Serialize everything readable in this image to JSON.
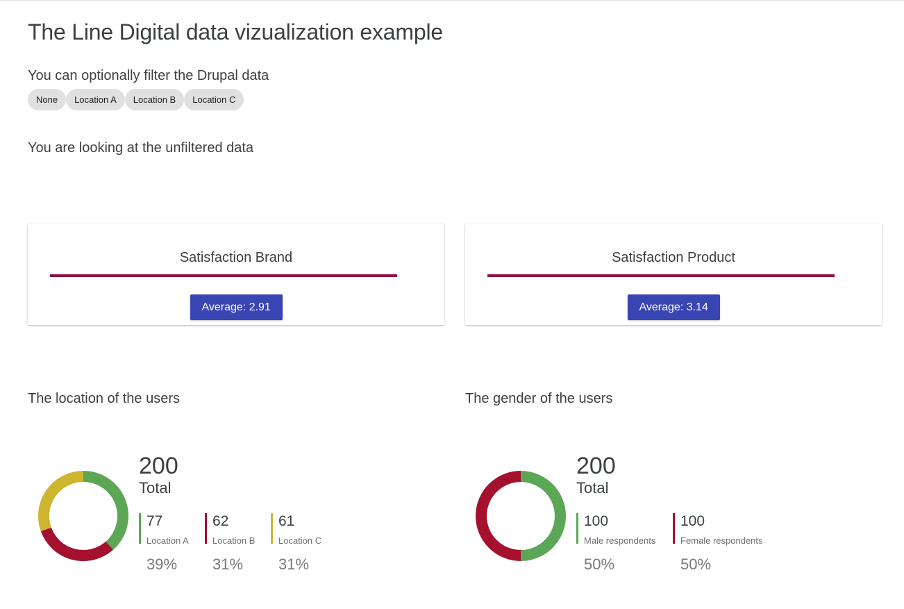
{
  "header": {
    "title": "The Line Digital data vizualization example",
    "filter_heading": "You can optionally filter the Drupal data",
    "filters": [
      "None",
      "Location A",
      "Location B",
      "Location C"
    ],
    "status": "You are looking at the unfiltered data"
  },
  "cards": [
    {
      "title": "Satisfaction Brand",
      "average_label": "Average: 2.91",
      "bar_color": "#8e1149",
      "button_color": "#3a45b4"
    },
    {
      "title": "Satisfaction Product",
      "average_label": "Average: 3.14",
      "bar_color": "#8e1149",
      "button_color": "#3a45b4"
    }
  ],
  "location": {
    "heading": "The location of the users",
    "total": "200",
    "total_label": "Total",
    "items": [
      {
        "value": "77",
        "label": "Location A",
        "percent": "39%",
        "color": "#5ba755"
      },
      {
        "value": "62",
        "label": "Location B",
        "percent": "31%",
        "color": "#a4102d"
      },
      {
        "value": "61",
        "label": "Location C",
        "percent": "31%",
        "color": "#cdb52f"
      }
    ]
  },
  "gender": {
    "heading": "The gender of the users",
    "total": "200",
    "total_label": "Total",
    "items": [
      {
        "value": "100",
        "label": "Male respondents",
        "percent": "50%",
        "color": "#5ba755"
      },
      {
        "value": "100",
        "label": "Female respondents",
        "percent": "50%",
        "color": "#a4102d"
      }
    ]
  },
  "chart_data": [
    {
      "type": "pie",
      "categories": [
        "Location A",
        "Location B",
        "Location C"
      ],
      "values": [
        77,
        62,
        61
      ],
      "colors": [
        "#5ba755",
        "#a4102d",
        "#cdb52f"
      ]
    },
    {
      "type": "pie",
      "categories": [
        "Male respondents",
        "Female respondents"
      ],
      "values": [
        100,
        100
      ],
      "colors": [
        "#5ba755",
        "#a4102d"
      ]
    }
  ]
}
